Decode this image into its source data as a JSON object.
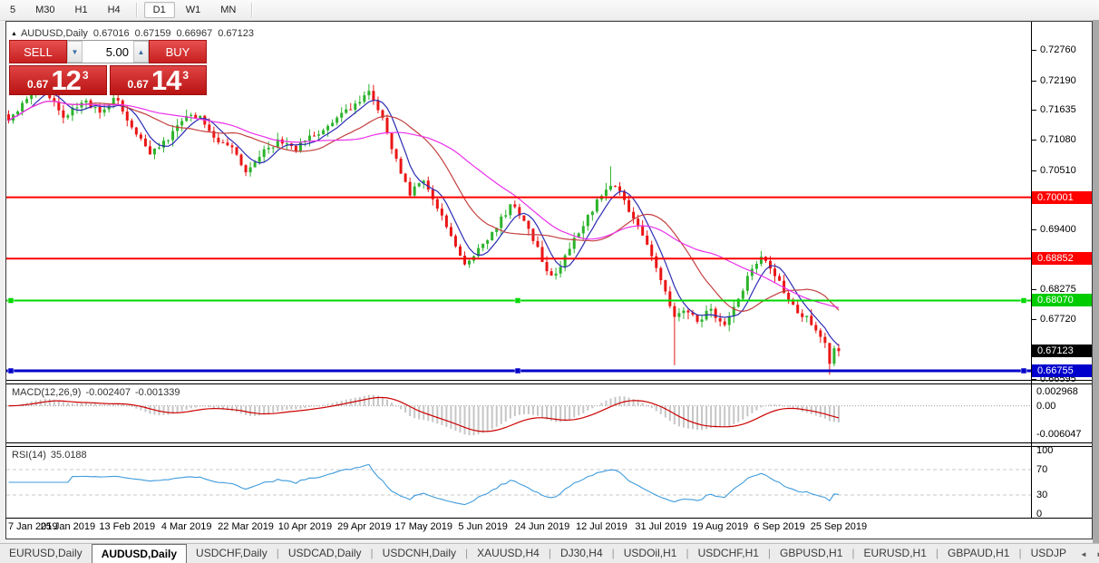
{
  "toolbar": {
    "timeframes": [
      "5",
      "M30",
      "H1",
      "H4",
      "D1",
      "W1",
      "MN"
    ],
    "selected": "D1"
  },
  "header": {
    "collapse_icon": "▲",
    "symbol": "AUDUSD,Daily",
    "open": "0.67016",
    "high": "0.67159",
    "low": "0.66967",
    "close": "0.67123"
  },
  "trade_panel": {
    "sell_label": "SELL",
    "buy_label": "BUY",
    "volume": "5.00",
    "spin_down": "▼",
    "spin_up": "▲",
    "sell_price": {
      "prefix": "0.67",
      "big": "12",
      "sup": "3"
    },
    "buy_price": {
      "prefix": "0.67",
      "big": "14",
      "sup": "3"
    }
  },
  "chart_data": {
    "type": "candlestick",
    "title": "AUDUSD Daily",
    "ylim": [
      0.66585,
      0.73285
    ],
    "num_candles": 183,
    "candle_spacing": 5.03,
    "close_path": [
      [
        0.0,
        0.714
      ],
      [
        0.02,
        0.718
      ],
      [
        0.042,
        0.7205
      ],
      [
        0.065,
        0.715
      ],
      [
        0.09,
        0.7183
      ],
      [
        0.11,
        0.7158
      ],
      [
        0.13,
        0.7188
      ],
      [
        0.15,
        0.7125
      ],
      [
        0.17,
        0.7085
      ],
      [
        0.19,
        0.7105
      ],
      [
        0.21,
        0.7148
      ],
      [
        0.23,
        0.7155
      ],
      [
        0.25,
        0.711
      ],
      [
        0.27,
        0.7088
      ],
      [
        0.287,
        0.7042
      ],
      [
        0.305,
        0.7085
      ],
      [
        0.325,
        0.7105
      ],
      [
        0.345,
        0.709
      ],
      [
        0.365,
        0.7115
      ],
      [
        0.385,
        0.7132
      ],
      [
        0.405,
        0.7158
      ],
      [
        0.42,
        0.718
      ],
      [
        0.435,
        0.7195
      ],
      [
        0.452,
        0.714
      ],
      [
        0.468,
        0.7065
      ],
      [
        0.483,
        0.7008
      ],
      [
        0.5,
        0.703
      ],
      [
        0.515,
        0.6985
      ],
      [
        0.532,
        0.693
      ],
      [
        0.55,
        0.6868
      ],
      [
        0.568,
        0.6905
      ],
      [
        0.588,
        0.6948
      ],
      [
        0.607,
        0.6988
      ],
      [
        0.622,
        0.695
      ],
      [
        0.638,
        0.69
      ],
      [
        0.655,
        0.6845
      ],
      [
        0.672,
        0.6892
      ],
      [
        0.69,
        0.6945
      ],
      [
        0.708,
        0.699
      ],
      [
        0.724,
        0.7028
      ],
      [
        0.74,
        0.7
      ],
      [
        0.756,
        0.6952
      ],
      [
        0.772,
        0.6903
      ],
      [
        0.788,
        0.684
      ],
      [
        0.802,
        0.6775
      ],
      [
        0.816,
        0.6795
      ],
      [
        0.83,
        0.6768
      ],
      [
        0.845,
        0.6792
      ],
      [
        0.86,
        0.6757
      ],
      [
        0.876,
        0.68
      ],
      [
        0.89,
        0.6848
      ],
      [
        0.905,
        0.6887
      ],
      [
        0.92,
        0.6866
      ],
      [
        0.935,
        0.682
      ],
      [
        0.95,
        0.6786
      ],
      [
        0.965,
        0.677
      ],
      [
        0.975,
        0.6745
      ],
      [
        0.9835,
        0.6727
      ],
      [
        0.989,
        0.669
      ],
      [
        0.9945,
        0.6718
      ],
      [
        1.0,
        0.67123
      ]
    ],
    "spike_lows": [
      [
        0.802,
        0.6686
      ],
      [
        0.989,
        0.6668
      ]
    ],
    "spike_highs": [
      [
        0.042,
        0.7215
      ],
      [
        0.724,
        0.7058
      ]
    ],
    "current_price": 0.67123,
    "moving_averages": [
      {
        "period": 6,
        "color": "#2B2BB4"
      },
      {
        "period": 18,
        "color": "#C44040"
      },
      {
        "period": 34,
        "color": "#EA30EA"
      }
    ],
    "h_lines": [
      {
        "price": 0.70001,
        "color": "#FF0000",
        "width": 2,
        "handles": false
      },
      {
        "price": 0.68852,
        "color": "#FF0000",
        "width": 2,
        "handles": false
      },
      {
        "price": 0.6807,
        "color": "#00D800",
        "width": 2,
        "handles": true
      },
      {
        "price": 0.66755,
        "color": "#0000C8",
        "width": 3,
        "handles": true
      }
    ],
    "price_ticks": [
      "0.72760",
      "0.72190",
      "0.71635",
      "0.71080",
      "0.70510",
      "0.69400",
      "0.68275",
      "0.67720",
      "0.66595"
    ],
    "price_badges": [
      {
        "label": "0.70001",
        "bg": "#FF0000"
      },
      {
        "label": "0.68852",
        "bg": "#FF0000"
      },
      {
        "label": "0.68070",
        "bg": "#00CC00"
      },
      {
        "label": "0.67123",
        "bg": "#000000"
      },
      {
        "label": "0.66755",
        "bg": "#0000CC"
      }
    ],
    "x_labels": [
      "7 Jan 2019",
      "25 Jan 2019",
      "13 Feb 2019",
      "4 Mar 2019",
      "22 Mar 2019",
      "10 Apr 2019",
      "29 Apr 2019",
      "17 May 2019",
      "5 Jun 2019",
      "24 Jun 2019",
      "12 Jul 2019",
      "31 Jul 2019",
      "19 Aug 2019",
      "6 Sep 2019",
      "25 Sep 2019"
    ],
    "bull_color": "#2CB32C",
    "bear_color": "#EA1515"
  },
  "macd": {
    "label": "MACD(12,26,9)",
    "value_main": "-0.002407",
    "value_signal": "-0.001339",
    "scale_top": "0.002968",
    "scale_zero": "0.00",
    "scale_bottom": "-0.006047",
    "range": [
      0.0045,
      -0.0077
    ],
    "hist_color": "#C6C6C6",
    "signal_color": "#CC0000"
  },
  "rsi": {
    "label": "RSI(14)",
    "value": "35.0188",
    "scale": [
      100,
      70,
      30,
      0
    ],
    "levels": [
      70,
      30
    ],
    "line_color": "#3F9BDC"
  },
  "tabs": {
    "items": [
      "EURUSD,Daily",
      "AUDUSD,Daily",
      "USDCHF,Daily",
      "USDCAD,Daily",
      "USDCNH,Daily",
      "XAUUSD,H4",
      "DJ30,H4",
      "USDOil,H1",
      "USDCHF,H1",
      "GBPUSD,H1",
      "EURUSD,H1",
      "GBPAUD,H1",
      "USDJP"
    ],
    "active": "AUDUSD,Daily",
    "scroll_left": "◄",
    "scroll_right": "►"
  }
}
